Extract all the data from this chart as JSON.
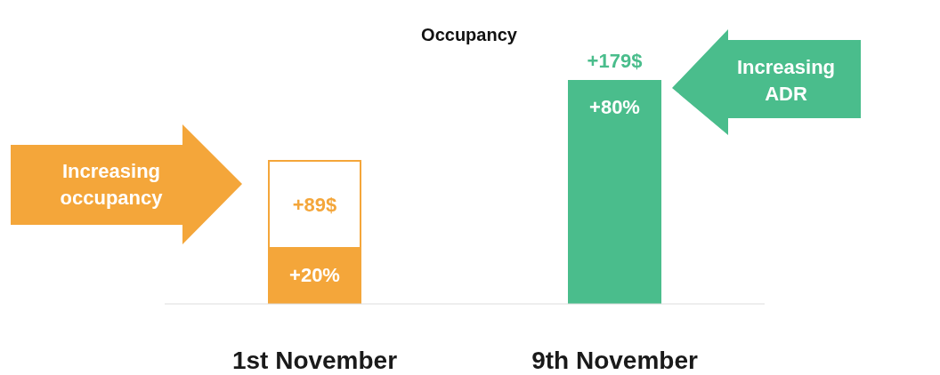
{
  "chart_data": {
    "type": "bar",
    "title": "Occupancy",
    "categories": [
      "1st November",
      "9th November"
    ],
    "values": [
      20,
      80
    ],
    "colors": [
      "#f4a63a",
      "#4abd8c"
    ],
    "value_labels": [
      "+20%",
      "+80%"
    ],
    "annotations": [
      "+89$",
      {
        "text": "+179$",
        "x": "9th November",
        "y": 80
      },
      "Increasing occupancy",
      "Increasing ADR"
    ],
    "grid": false,
    "legend": false
  }
}
